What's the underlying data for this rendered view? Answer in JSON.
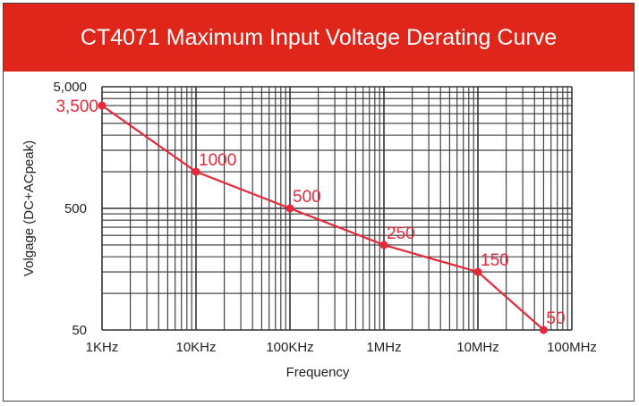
{
  "chart_data": {
    "type": "line",
    "title": "CT4071 Maximum Input Voltage Derating Curve",
    "xlabel": "Frequency",
    "ylabel": "Volgage (DC+ACpeak)",
    "xscale": "log",
    "yscale": "log",
    "xlim_hz": [
      1000,
      100000000
    ],
    "ylim": [
      50,
      5000
    ],
    "x_tick_labels": [
      "1KHz",
      "10KHz",
      "100KHz",
      "1MHz",
      "10MHz",
      "100MHz"
    ],
    "y_tick_labels": [
      "5,000",
      "500",
      "50"
    ],
    "y_tick_values": [
      5000,
      500,
      50
    ],
    "grid": true,
    "series": [
      {
        "name": "Maximum Input Voltage",
        "color": "#e8283a",
        "x_hz": [
          1000,
          10000,
          100000,
          1000000,
          10000000,
          50000000
        ],
        "values": [
          3500,
          1000,
          500,
          250,
          150,
          50
        ],
        "labels": [
          "3,500",
          "1000",
          "500",
          "250",
          "150",
          "50"
        ]
      }
    ]
  },
  "colors": {
    "header": "#e0261a",
    "series": "#e8283a",
    "grid": "#333333"
  }
}
